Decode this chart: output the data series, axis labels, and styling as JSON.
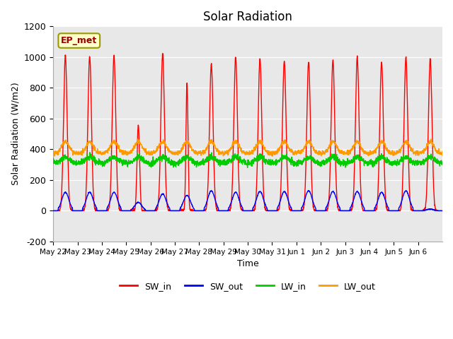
{
  "title": "Solar Radiation",
  "ylabel": "Solar Radiation (W/m2)",
  "xlabel": "Time",
  "ylim": [
    -200,
    1200
  ],
  "yticks": [
    -200,
    0,
    200,
    400,
    600,
    800,
    1000,
    1200
  ],
  "series_colors": {
    "SW_in": "#ff0000",
    "SW_out": "#0000ff",
    "LW_in": "#00cc00",
    "LW_out": "#ff9900"
  },
  "ep_met_label": "EP_met",
  "ep_met_facecolor": "#ffffcc",
  "ep_met_edgecolor": "#999900",
  "ep_met_textcolor": "#990000",
  "background_color": "#ffffff",
  "plot_bg_color": "#e8e8e8",
  "grid_color": "#ffffff",
  "n_days": 16,
  "hours_per_day": 24,
  "x_tick_labels": [
    "May 22",
    "May 23",
    "May 24",
    "May 25",
    "May 26",
    "May 27",
    "May 28",
    "May 29",
    "May 30",
    "May 31",
    "Jun 1",
    "Jun 2",
    "Jun 3",
    "Jun 4",
    "Jun 5",
    "Jun 6"
  ],
  "SW_in_peaks": [
    1010,
    1005,
    1010,
    560,
    1025,
    830,
    960,
    1000,
    990,
    975,
    970,
    980,
    1000,
    965,
    1000,
    990
  ],
  "SW_in_widths": [
    3.5,
    3.5,
    3.5,
    2.5,
    3.5,
    2.0,
    3.5,
    3.5,
    3.5,
    3.5,
    3.5,
    3.5,
    3.5,
    3.5,
    3.5,
    3.5
  ],
  "SW_out_peaks": [
    120,
    120,
    120,
    55,
    110,
    100,
    130,
    120,
    125,
    125,
    130,
    125,
    125,
    120,
    130,
    10
  ],
  "LW_in_base": 310,
  "LW_in_day_amp": 40,
  "LW_out_base": 375,
  "LW_out_day_amp": 75,
  "line_width": 1.0,
  "figsize": [
    6.4,
    4.8
  ],
  "dpi": 100
}
